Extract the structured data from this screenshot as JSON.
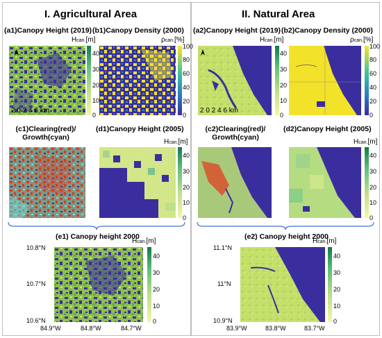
{
  "sections": {
    "agri": {
      "title": "I. Agricultural Area"
    },
    "natural": {
      "title": "II. Natural Area"
    }
  },
  "panels": {
    "a1": "(a1)Canopy Height (2019)",
    "b1": "(b1)Canopy Density (2000)",
    "c1_line1": "(c1)Clearing(red)/",
    "c1_line2": "Growth(cyan)",
    "d1": "(d1)Canopy Height (2005)",
    "e1": "(e1) Canopy height 2000",
    "a2": "(a2)Canopy Height (2019)",
    "b2": "(b2)Canopy Density (2000)",
    "c2_line1": "(c2)Clearing(red)/",
    "c2_line2": "Growth(cyan)",
    "d2": "(d2)Canopy Height (2005)",
    "e2": "(e2) Canopy height 2000"
  },
  "units": {
    "height_main": "H",
    "height_sub": "can.",
    "height_tail": "[m]",
    "density_main": "ρ",
    "density_sub": "can.",
    "density_tail": "[%]"
  },
  "ticks": {
    "height": [
      "40",
      "30",
      "20",
      "10",
      "0"
    ],
    "density": [
      "100",
      "80",
      "60",
      "40",
      "20",
      "0"
    ]
  },
  "scalebar": "2 0  2  4  6 km",
  "north_arrow": "north-arrow-icon",
  "e1_axes": {
    "y": [
      "10.8°N",
      "10.7°N",
      "10.6°N"
    ],
    "x": [
      "84.9°W",
      "84.8°W",
      "84.7°W"
    ]
  },
  "e2_axes": {
    "y": [
      "11.1°N",
      "11°N",
      "10.9°N"
    ],
    "x": [
      "83.9°W",
      "83.8°W",
      "83.7°W"
    ]
  },
  "colors": {
    "water": "#3a2e9e",
    "canopy_high": "#2e8a4d",
    "canopy_low": "#f4ec2b",
    "density_high": "#f2e32a",
    "frame": "#bdbdbd",
    "brace": "#3b6fd6"
  }
}
